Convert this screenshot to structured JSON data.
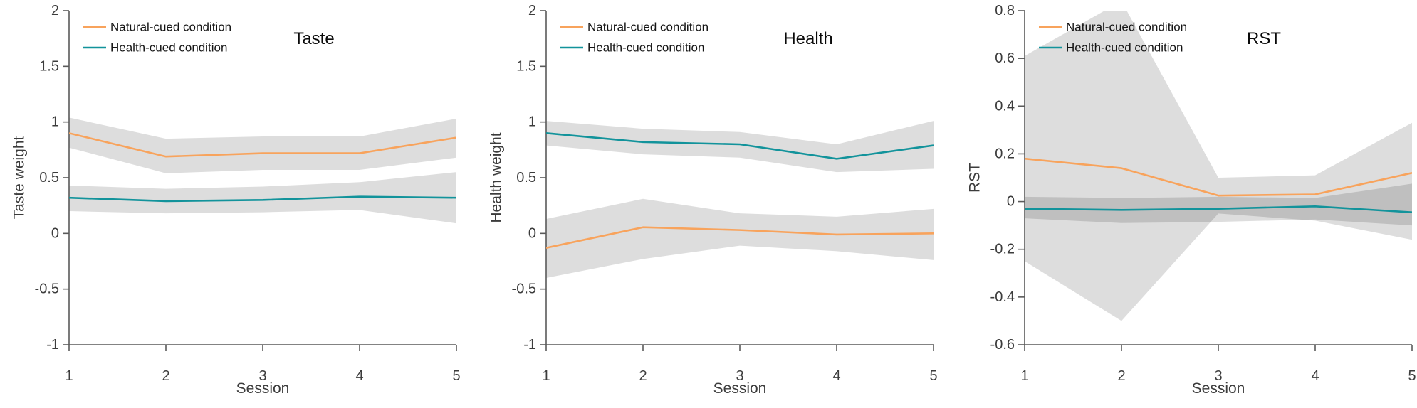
{
  "figure": {
    "background": "#ffffff",
    "axis_color": "#5a5a5a",
    "tick_text_color": "#3c3c3c",
    "band_color": "#000000",
    "band_opacity": 0.135,
    "legend_labels": [
      "Natural-cued condition",
      "Health-cued condition"
    ],
    "colors": {
      "natural": "#F8A35C",
      "health": "#12939B"
    }
  },
  "chart_data": [
    {
      "type": "line",
      "title": "Taste",
      "ylabel": "Taste weight",
      "xlabel": "Session",
      "x": [
        1,
        2,
        3,
        4,
        5
      ],
      "xticks": [
        1,
        2,
        3,
        4,
        5
      ],
      "ylim": [
        -1,
        2
      ],
      "yticks": [
        -1,
        -0.5,
        0,
        0.5,
        1,
        1.5,
        2
      ],
      "legend_position": "top-left",
      "grid": false,
      "series": [
        {
          "name": "Natural-cued condition",
          "color": "#F8A35C",
          "values": [
            0.9,
            0.69,
            0.72,
            0.72,
            0.86
          ],
          "band_lower": [
            0.77,
            0.54,
            0.57,
            0.57,
            0.68
          ],
          "band_upper": [
            1.04,
            0.85,
            0.87,
            0.87,
            1.03
          ]
        },
        {
          "name": "Health-cued condition",
          "color": "#12939B",
          "values": [
            0.32,
            0.29,
            0.3,
            0.33,
            0.32
          ],
          "band_lower": [
            0.2,
            0.18,
            0.19,
            0.21,
            0.09
          ],
          "band_upper": [
            0.43,
            0.4,
            0.42,
            0.46,
            0.55
          ]
        }
      ]
    },
    {
      "type": "line",
      "title": "Health",
      "ylabel": "Health weight",
      "xlabel": "Session",
      "x": [
        1,
        2,
        3,
        4,
        5
      ],
      "xticks": [
        1,
        2,
        3,
        4,
        5
      ],
      "ylim": [
        -1,
        2
      ],
      "yticks": [
        -1,
        -0.5,
        0,
        0.5,
        1,
        1.5,
        2
      ],
      "legend_position": "top-left",
      "grid": false,
      "series": [
        {
          "name": "Natural-cued condition",
          "color": "#F8A35C",
          "values": [
            -0.13,
            0.055,
            0.03,
            -0.01,
            0.0
          ],
          "band_lower": [
            -0.4,
            -0.23,
            -0.11,
            -0.16,
            -0.24
          ],
          "band_upper": [
            0.13,
            0.31,
            0.18,
            0.15,
            0.22
          ]
        },
        {
          "name": "Health-cued condition",
          "color": "#12939B",
          "values": [
            0.9,
            0.82,
            0.8,
            0.67,
            0.79
          ],
          "band_lower": [
            0.79,
            0.71,
            0.68,
            0.55,
            0.58
          ],
          "band_upper": [
            1.01,
            0.94,
            0.91,
            0.8,
            1.01
          ]
        }
      ]
    },
    {
      "type": "line",
      "title": "RST",
      "ylabel": "RST",
      "xlabel": "Session",
      "x": [
        1,
        2,
        3,
        4,
        5
      ],
      "xticks": [
        1,
        2,
        3,
        4,
        5
      ],
      "ylim": [
        -0.6,
        0.8
      ],
      "yticks": [
        -0.6,
        -0.4,
        -0.2,
        0,
        0.2,
        0.4,
        0.6,
        0.8
      ],
      "legend_position": "top-left",
      "grid": false,
      "series": [
        {
          "name": "Natural-cued condition",
          "color": "#F8A35C",
          "values": [
            0.18,
            0.14,
            0.025,
            0.03,
            0.12
          ],
          "band_lower": [
            -0.25,
            -0.5,
            -0.05,
            -0.08,
            -0.16
          ],
          "band_upper": [
            0.61,
            0.84,
            0.1,
            0.11,
            0.33
          ]
        },
        {
          "name": "Health-cued condition",
          "color": "#12939B",
          "values": [
            -0.03,
            -0.035,
            -0.03,
            -0.02,
            -0.045
          ],
          "band_lower": [
            -0.07,
            -0.09,
            -0.085,
            -0.075,
            -0.1
          ],
          "band_upper": [
            0.02,
            0.015,
            0.02,
            0.015,
            0.075
          ]
        }
      ]
    }
  ]
}
